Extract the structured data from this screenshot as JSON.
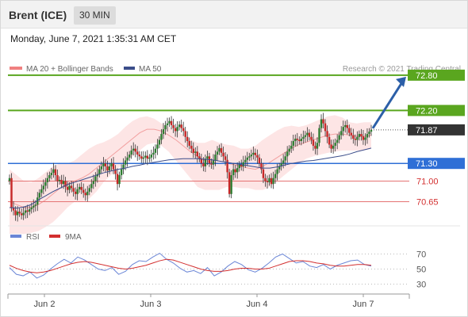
{
  "header": {
    "instrument": "Brent (ICE)",
    "timeframe": "30 MIN",
    "datetime": "Monday, June 7, 2021 1:35:31 AM CET"
  },
  "legend": {
    "bollinger": "MA 20 + Bollinger Bands",
    "ma50": "MA 50",
    "credit": "Research © 2021 Trading Central"
  },
  "rsi_legend": {
    "rsi": "RSI",
    "ma9": "9MA"
  },
  "colors": {
    "up_candle": "#2e7d32",
    "down_candle": "#c62828",
    "bollinger_fill": "#fde0e0",
    "bollinger_line": "#f2a0a0",
    "ma50": "#3b4d8a",
    "resistance": "#5aa61f",
    "support_blue": "#2f6fd6",
    "support_red": "#e57373",
    "current": "#333333",
    "arrow": "#2c5fa8",
    "rsi": "#6b86d6",
    "rsi_ma": "#d32f2f"
  },
  "chart_data": [
    {
      "type": "candlestick",
      "title": "Brent (ICE) 30 MIN",
      "x_tick_labels": [
        "Jun 2",
        "Jun 3",
        "Jun 4",
        "Jun 7"
      ],
      "ylim": [
        70.4,
        73.0
      ],
      "levels": [
        {
          "label": "72.80",
          "value": 72.8,
          "kind": "resistance"
        },
        {
          "label": "72.20",
          "value": 72.2,
          "kind": "resistance"
        },
        {
          "label": "71.87",
          "value": 71.87,
          "kind": "current"
        },
        {
          "label": "71.30",
          "value": 71.3,
          "kind": "support_blue"
        },
        {
          "label": "71.00",
          "value": 71.0,
          "kind": "support_red"
        },
        {
          "label": "70.65",
          "value": 70.65,
          "kind": "support_red"
        }
      ],
      "projection": {
        "from": 71.87,
        "to": 72.8
      },
      "close_series": [
        71.05,
        70.55,
        70.5,
        70.42,
        70.48,
        70.45,
        70.42,
        70.46,
        70.5,
        70.48,
        70.52,
        70.55,
        70.58,
        70.6,
        70.72,
        70.8,
        70.86,
        70.92,
        70.98,
        71.05,
        71.1,
        71.14,
        71.2,
        71.1,
        71.0,
        71.02,
        70.95,
        71.0,
        70.9,
        70.85,
        70.92,
        70.88,
        70.82,
        70.78,
        70.86,
        70.9,
        70.85,
        70.8,
        70.76,
        70.82,
        70.88,
        70.95,
        71.0,
        71.08,
        71.12,
        71.2,
        71.25,
        71.3,
        71.25,
        71.18,
        71.25,
        71.3,
        71.2,
        71.12,
        70.95,
        71.1,
        71.2,
        71.28,
        71.35,
        71.4,
        71.45,
        71.52,
        71.55,
        71.5,
        71.45,
        71.42,
        71.38,
        71.4,
        71.43,
        71.38,
        71.4,
        71.45,
        71.48,
        71.55,
        71.62,
        71.7,
        71.8,
        71.88,
        71.95,
        71.98,
        72.02,
        71.95,
        71.9,
        71.85,
        71.92,
        71.96,
        71.9,
        71.85,
        71.75,
        71.68,
        71.6,
        71.55,
        71.48,
        71.5,
        71.42,
        71.38,
        71.3,
        71.25,
        71.38,
        71.42,
        71.3,
        71.28,
        71.35,
        71.45,
        71.5,
        71.56,
        71.48,
        71.42,
        71.36,
        71.15,
        70.78,
        71.1,
        71.2,
        71.15,
        71.22,
        71.28,
        71.25,
        71.32,
        71.36,
        71.4,
        71.42,
        71.45,
        71.48,
        71.44,
        71.4,
        71.3,
        71.2,
        71.05,
        71.0,
        70.98,
        71.05,
        70.95,
        71.05,
        71.12,
        71.2,
        71.25,
        71.3,
        71.35,
        71.42,
        71.5,
        71.55,
        71.6,
        71.68,
        71.72,
        71.7,
        71.68,
        71.72,
        71.75,
        71.78,
        71.82,
        71.75,
        71.7,
        71.6,
        71.55,
        71.65,
        71.9,
        72.05,
        71.98,
        71.85,
        71.75,
        71.62,
        71.55,
        71.6,
        71.65,
        71.7,
        71.78,
        71.85,
        71.92,
        71.95,
        71.9,
        71.82,
        71.78,
        71.72,
        71.7,
        71.75,
        71.8,
        71.76,
        71.7,
        71.74,
        71.8,
        71.84,
        71.87
      ],
      "ma50_series": [
        70.55,
        70.54,
        70.56,
        70.6,
        70.68,
        70.75,
        70.82,
        70.88,
        70.94,
        70.98,
        71.02,
        71.06,
        71.1,
        71.14,
        71.17,
        71.2,
        71.22,
        71.25,
        71.27,
        71.3,
        71.32,
        71.34,
        71.36,
        71.37,
        71.38,
        71.38,
        71.38,
        71.37,
        71.36,
        71.34,
        71.32,
        71.3,
        71.28,
        71.26,
        71.24,
        71.22,
        71.22,
        71.24,
        71.27,
        71.3,
        71.32,
        71.34,
        71.35,
        71.37,
        71.39,
        71.41,
        71.43,
        71.46,
        71.5,
        71.53,
        71.56
      ],
      "bollinger": {
        "upper": [
          71.2,
          71.1,
          71.0,
          70.98,
          71.05,
          71.15,
          71.25,
          71.3,
          71.3,
          71.35,
          71.45,
          71.55,
          71.62,
          71.66,
          71.72,
          71.8,
          71.92,
          72.02,
          72.08,
          72.1,
          72.06,
          71.98,
          71.92,
          71.88,
          71.78,
          71.7,
          71.65,
          71.65,
          71.7,
          71.65,
          71.62,
          71.6,
          71.55,
          71.55,
          71.6,
          71.7,
          71.78,
          71.86,
          71.92,
          71.94,
          71.92,
          71.95,
          72.0,
          72.05,
          72.1,
          72.12,
          72.08,
          72.0,
          71.98,
          72.0,
          72.0
        ],
        "middle": [
          70.65,
          70.6,
          70.55,
          70.55,
          70.6,
          70.68,
          70.78,
          70.88,
          70.95,
          71.0,
          71.05,
          71.12,
          71.22,
          71.32,
          71.42,
          71.52,
          71.62,
          71.72,
          71.82,
          71.88,
          71.88,
          71.85,
          71.78,
          71.7,
          71.6,
          71.5,
          71.42,
          71.35,
          71.32,
          71.3,
          71.3,
          71.28,
          71.25,
          71.22,
          71.2,
          71.25,
          71.32,
          71.4,
          71.48,
          71.56,
          71.62,
          71.66,
          71.7,
          71.74,
          71.78,
          71.8,
          71.8,
          71.78,
          71.76,
          71.76,
          71.78
        ],
        "lower": [
          70.1,
          70.1,
          70.1,
          70.12,
          70.15,
          70.22,
          70.3,
          70.42,
          70.55,
          70.65,
          70.65,
          70.7,
          70.82,
          70.98,
          71.1,
          71.22,
          71.32,
          71.42,
          71.52,
          71.62,
          71.65,
          71.6,
          71.5,
          71.35,
          71.2,
          71.05,
          70.9,
          70.85,
          70.85,
          70.85,
          70.9,
          70.9,
          70.88,
          70.88,
          70.85,
          70.85,
          70.9,
          71.0,
          71.1,
          71.2,
          71.3,
          71.38,
          71.42,
          71.45,
          71.48,
          71.5,
          71.52,
          71.52,
          71.52,
          71.52,
          71.55
        ]
      }
    },
    {
      "type": "line",
      "title": "RSI",
      "y_tick_labels": [
        "70",
        "50",
        "30"
      ],
      "ylim": [
        20,
        80
      ],
      "reference_lines": [
        70,
        50,
        30
      ],
      "series": [
        {
          "name": "RSI",
          "values": [
            52,
            43,
            41,
            46,
            38,
            42,
            50,
            57,
            63,
            58,
            66,
            62,
            56,
            50,
            48,
            52,
            43,
            47,
            56,
            61,
            60,
            66,
            71,
            63,
            58,
            51,
            46,
            48,
            44,
            52,
            41,
            46,
            54,
            60,
            56,
            49,
            46,
            51,
            58,
            66,
            70,
            64,
            58,
            60,
            54,
            52,
            56,
            50,
            55,
            58,
            61,
            62,
            56,
            54
          ]
        },
        {
          "name": "9MA",
          "values": [
            55,
            51,
            48,
            46,
            45,
            46,
            48,
            51,
            54,
            57,
            59,
            60,
            59,
            57,
            55,
            53,
            51,
            50,
            51,
            53,
            55,
            58,
            61,
            63,
            62,
            59,
            56,
            53,
            50,
            48,
            47,
            47,
            48,
            50,
            51,
            51,
            50,
            50,
            51,
            54,
            57,
            60,
            61,
            61,
            60,
            58,
            57,
            55,
            54,
            54,
            55,
            56,
            56,
            55
          ]
        }
      ]
    }
  ]
}
